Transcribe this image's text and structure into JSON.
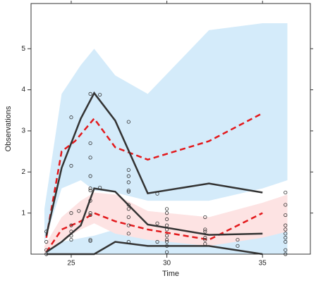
{
  "chart_data": {
    "type": "line",
    "xlabel": "Time",
    "ylabel": "Observations",
    "xlim": [
      22.9,
      37.5
    ],
    "ylim": [
      0,
      6.1
    ],
    "xticks": [
      25,
      30,
      35
    ],
    "yticks": [
      1,
      2,
      3,
      4,
      5
    ],
    "grid": false,
    "bands": [
      {
        "color": "#d4ebfa",
        "x": [
          23.6,
          24.5,
          25.5,
          26.2,
          27.3,
          29,
          32.2,
          35,
          36.3
        ],
        "upper": [
          1.1,
          3.9,
          4.6,
          5.0,
          4.35,
          3.9,
          5.45,
          5.62,
          5.62
        ],
        "lower": [
          0.3,
          1.6,
          1.8,
          1.55,
          1.5,
          1.3,
          1.3,
          1.6,
          1.8
        ]
      },
      {
        "color": "#d4ebfa",
        "x": [
          23.6,
          24.5,
          26.2,
          27.3,
          29,
          32.2,
          35,
          36.3
        ],
        "upper": [
          0.15,
          0.3,
          0.45,
          0.6,
          0.5,
          0.5,
          0.6,
          0.6
        ],
        "lower": [
          0,
          0,
          0,
          0,
          0,
          0,
          0,
          0
        ]
      },
      {
        "color": "#fde3e3",
        "x": [
          23.6,
          24.5,
          25.5,
          26.2,
          27.3,
          29,
          32.2,
          35,
          36.3
        ],
        "upper": [
          0.2,
          0.9,
          1.3,
          1.5,
          1.45,
          1.05,
          0.9,
          1.25,
          1.45
        ],
        "lower": [
          0,
          0.35,
          0.6,
          0.75,
          0.5,
          0.35,
          0.2,
          0.4,
          0.55
        ]
      }
    ],
    "series": [
      {
        "color": "#e3191c",
        "dashed": true,
        "x": [
          23.7,
          24.5,
          25.2,
          26.2,
          27.3,
          29,
          32.2,
          35
        ],
        "values": [
          0.4,
          2.5,
          2.75,
          3.3,
          2.6,
          2.3,
          2.75,
          3.43
        ]
      },
      {
        "color": "#e3191c",
        "dashed": true,
        "x": [
          23.7,
          24.5,
          25.5,
          26.2,
          27.3,
          29,
          32.2,
          35
        ],
        "values": [
          0.05,
          0.6,
          0.8,
          1.0,
          0.8,
          0.6,
          0.35,
          1.0
        ]
      },
      {
        "color": "#333333",
        "dashed": false,
        "x": [
          23.7,
          24.5,
          25.5,
          26.2,
          27.3,
          29,
          32.2,
          35
        ],
        "values": [
          0.45,
          2.1,
          3.3,
          3.92,
          3.25,
          1.48,
          1.72,
          1.5
        ]
      },
      {
        "color": "#333333",
        "dashed": false,
        "x": [
          23.7,
          24.5,
          25.5,
          26.2,
          27.3,
          29,
          32.2,
          35
        ],
        "values": [
          0.05,
          0.3,
          0.7,
          1.6,
          1.52,
          0.72,
          0.47,
          0.5
        ]
      },
      {
        "color": "#333333",
        "dashed": false,
        "x": [
          23.7,
          24.5,
          26.2,
          27.3,
          29,
          32.2,
          35
        ],
        "values": [
          0,
          0,
          0,
          0.3,
          0.2,
          0.2,
          0
        ]
      }
    ],
    "points": {
      "color": "#333333",
      "x": [
        23.7,
        23.7,
        23.7,
        23.7,
        25,
        25,
        25,
        25,
        25,
        25,
        25,
        25.4,
        26,
        26,
        26,
        26,
        26,
        26,
        26,
        26,
        26,
        26,
        26,
        26.5,
        26.5,
        28,
        28,
        28,
        28,
        28,
        28,
        28,
        28,
        28,
        28,
        28,
        28,
        29.5,
        29.5,
        29.5,
        30,
        30,
        30,
        30,
        30,
        30,
        30,
        30,
        30,
        30,
        32,
        32,
        32,
        32,
        32,
        32,
        33.7,
        33.7,
        36.2,
        36.2,
        36.2,
        36.2,
        36.2,
        36.2,
        36.2,
        36.2,
        36.2,
        36.2
      ],
      "values": [
        0,
        0.1,
        0.3,
        0.55,
        3.33,
        2.15,
        1.0,
        0.7,
        0.55,
        0.45,
        0.35,
        1.05,
        3.9,
        2.7,
        2.35,
        1.9,
        1.6,
        1.55,
        1.3,
        1.0,
        0.95,
        0.35,
        0.32,
        3.88,
        1.62,
        3.22,
        2.05,
        1.9,
        1.75,
        1.55,
        1.52,
        1.2,
        1.1,
        0.9,
        0.7,
        0.5,
        0.3,
        1.47,
        0.75,
        0.3,
        1.1,
        1.0,
        0.85,
        0.7,
        0.6,
        0.45,
        0.35,
        0.3,
        0.2,
        0.05,
        0.9,
        0.6,
        0.55,
        0.4,
        0.35,
        0.25,
        0.2,
        0.35,
        1.5,
        1.2,
        0.95,
        0.7,
        0.6,
        0.5,
        0.4,
        0.3,
        0.1,
        0
      ]
    }
  }
}
